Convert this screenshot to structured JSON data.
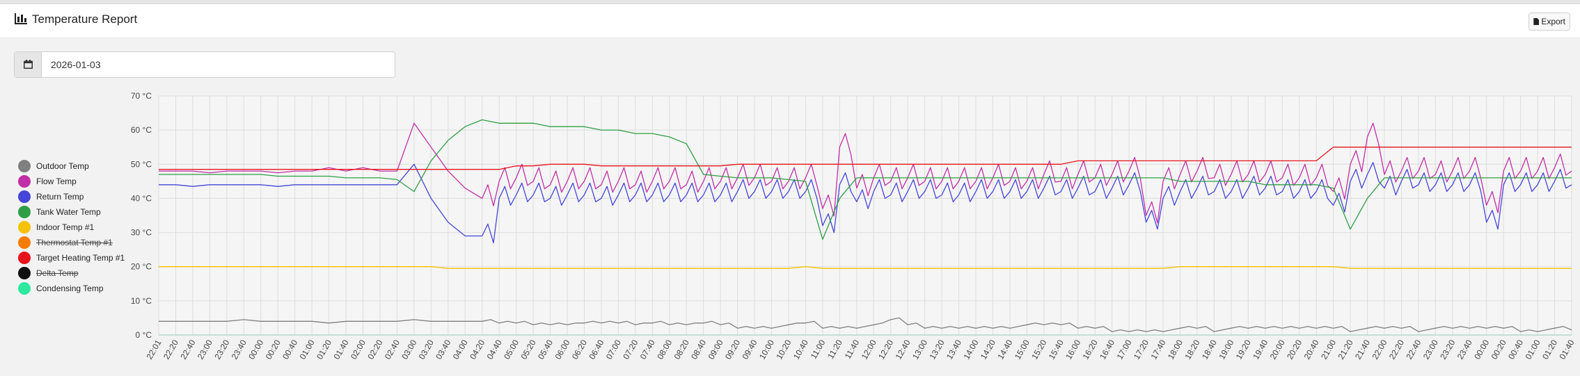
{
  "header": {
    "title": "Temperature Report",
    "export_label": "Export",
    "title_icon": "bar-chart-icon",
    "export_icon": "file-icon"
  },
  "date_picker": {
    "value": "2026-01-03",
    "icon": "calendar-icon"
  },
  "legend": [
    {
      "label": "Outdoor Temp",
      "color": "#7f7f7f",
      "hidden": false
    },
    {
      "label": "Flow Temp",
      "color": "#c02fa6",
      "hidden": false
    },
    {
      "label": "Return Temp",
      "color": "#4545d8",
      "hidden": false
    },
    {
      "label": "Tank Water Temp",
      "color": "#2e9e44",
      "hidden": false
    },
    {
      "label": "Indoor Temp #1",
      "color": "#f7c200",
      "hidden": false
    },
    {
      "label": "Thermostat Temp #1",
      "color": "#f57c00",
      "hidden": true
    },
    {
      "label": "Target Heating Temp #1",
      "color": "#e8141b",
      "hidden": false
    },
    {
      "label": "Delta Temp",
      "color": "#111111",
      "hidden": true
    },
    {
      "label": "Condensing Temp",
      "color": "#2ee8a0",
      "hidden": false
    }
  ],
  "chart_data": {
    "type": "line",
    "yunit": "°C",
    "ylim": [
      0,
      70
    ],
    "yticks": [
      0,
      10,
      20,
      30,
      40,
      50,
      60,
      70
    ],
    "ytick_labels": [
      "0 °C",
      "10 °C",
      "20 °C",
      "30 °C",
      "40 °C",
      "50 °C",
      "60 °C",
      "70 °C"
    ],
    "grid": true,
    "legend_position": "left",
    "x": [
      "22:01",
      "22:20",
      "22:40",
      "23:00",
      "23:20",
      "23:40",
      "00:00",
      "00:20",
      "00:40",
      "01:00",
      "01:20",
      "01:40",
      "02:00",
      "02:20",
      "02:40",
      "03:00",
      "03:20",
      "03:40",
      "04:00",
      "04:20",
      "04:40",
      "05:00",
      "05:20",
      "05:40",
      "06:00",
      "06:20",
      "06:40",
      "07:00",
      "07:20",
      "07:40",
      "08:00",
      "08:20",
      "08:40",
      "09:00",
      "09:20",
      "09:40",
      "10:00",
      "10:20",
      "10:40",
      "11:00",
      "11:20",
      "11:40",
      "12:00",
      "12:20",
      "12:40",
      "13:00",
      "13:20",
      "13:40",
      "14:00",
      "14:20",
      "14:40",
      "15:00",
      "15:20",
      "15:40",
      "16:00",
      "16:20",
      "16:40",
      "17:00",
      "17:20",
      "17:40",
      "18:00",
      "18:20",
      "18:40",
      "19:00",
      "19:20",
      "19:40",
      "20:00",
      "20:20",
      "20:40",
      "21:00",
      "21:20",
      "21:40",
      "22:00",
      "22:20",
      "22:40",
      "23:00",
      "23:20",
      "23:40",
      "00:00",
      "00:20",
      "00:40",
      "01:00",
      "01:20",
      "01:40"
    ],
    "series": [
      {
        "name": "Outdoor Temp",
        "values": [
          4,
          4,
          4,
          4,
          4,
          4.5,
          4,
          4,
          4,
          4,
          3.5,
          4,
          4,
          4,
          4,
          4.5,
          4,
          4,
          4,
          4,
          3.5,
          3.5,
          3,
          3,
          3,
          3.5,
          3.5,
          3.5,
          3,
          3.5,
          3,
          3,
          3.5,
          3,
          2,
          2,
          2,
          3,
          3.5,
          2,
          2,
          2,
          3,
          4.5,
          3,
          2,
          2,
          2,
          2,
          2,
          2,
          3,
          3,
          3,
          2,
          2,
          1,
          1,
          1,
          1,
          2,
          2,
          1,
          2,
          2,
          2,
          2,
          2,
          2,
          2,
          1,
          2,
          2,
          2,
          1,
          2,
          2,
          2,
          2,
          2,
          1,
          1,
          2,
          1.5
        ]
      },
      {
        "name": "Flow Temp",
        "values": [
          48,
          48,
          48,
          47.5,
          48,
          48,
          48,
          47.5,
          48,
          48,
          49,
          48,
          49,
          48,
          48,
          62,
          55,
          48,
          43,
          40,
          45,
          46,
          45,
          44,
          45,
          45,
          44,
          45,
          44,
          45,
          45,
          44,
          45,
          45,
          46,
          46,
          45,
          45,
          46,
          37,
          55,
          43,
          46,
          45,
          46,
          45,
          45,
          45,
          45,
          46,
          45,
          45,
          47,
          45,
          47,
          46,
          47,
          48,
          35,
          45,
          47,
          48,
          46,
          47,
          47,
          47,
          46,
          46,
          46,
          42,
          50,
          58,
          47,
          48,
          48,
          47,
          48,
          48,
          38,
          48,
          48,
          48,
          49,
          48
        ]
      },
      {
        "name": "Return Temp",
        "values": [
          44,
          44,
          43.5,
          44,
          44,
          44,
          44,
          43.5,
          44,
          44,
          44,
          44,
          44,
          44,
          44,
          50,
          40,
          33,
          29,
          29,
          40,
          41,
          41,
          40,
          41,
          41,
          40,
          41,
          41,
          41,
          41,
          41,
          41,
          41,
          42,
          42,
          42,
          42,
          42,
          32,
          44,
          39,
          42,
          41,
          42,
          42,
          41,
          41,
          42,
          42,
          42,
          42,
          43,
          42,
          43,
          42,
          43,
          44,
          33,
          40,
          42,
          43,
          42,
          42,
          43,
          43,
          42,
          42,
          42,
          38,
          45,
          47,
          43,
          45,
          44,
          44,
          44,
          44,
          33,
          44,
          44,
          44,
          45,
          44
        ]
      },
      {
        "name": "Tank Water Temp",
        "values": [
          47,
          47,
          47,
          47,
          47,
          47,
          47,
          46.5,
          46.5,
          46.5,
          46.5,
          46,
          46,
          46,
          45.5,
          42,
          51,
          57,
          61,
          63,
          62,
          62,
          62,
          61,
          61,
          61,
          60,
          60,
          59,
          59,
          58,
          56,
          47,
          46.5,
          46,
          46,
          46,
          45.5,
          45,
          28,
          40,
          46,
          46,
          46,
          46,
          46,
          46,
          46,
          46,
          46,
          46,
          46,
          46,
          46,
          46,
          46,
          46,
          46,
          46,
          46,
          45,
          45,
          45,
          45,
          45,
          44,
          44,
          44,
          44,
          43,
          31,
          40,
          46,
          46,
          46,
          46,
          46,
          46,
          46,
          46,
          46,
          46,
          46,
          46
        ]
      },
      {
        "name": "Indoor Temp #1",
        "values": [
          20,
          20,
          20,
          20,
          20,
          20,
          20,
          20,
          20,
          20,
          20,
          20,
          20,
          20,
          20,
          20,
          20,
          19.5,
          19.5,
          19.5,
          19.5,
          19.5,
          19.5,
          19.5,
          19.5,
          19.5,
          19.5,
          19.5,
          19.5,
          19.5,
          19.5,
          19.5,
          19.5,
          19.5,
          19.5,
          19.5,
          19.5,
          19.5,
          20,
          19.5,
          19.5,
          19.5,
          19.5,
          19.5,
          19.5,
          19.5,
          19.5,
          19.5,
          19.5,
          19.5,
          19.5,
          19.5,
          19.5,
          19.5,
          19.5,
          19.5,
          19.5,
          19.5,
          19.5,
          19.5,
          20,
          20,
          20,
          20,
          20,
          20,
          20,
          20,
          20,
          20,
          19.5,
          19.5,
          19.5,
          19.5,
          19.5,
          19.5,
          19.5,
          19.5,
          19.5,
          19.5,
          19.5,
          19.5,
          19.5,
          19.5
        ]
      },
      {
        "name": "Target Heating Temp #1",
        "values": [
          48.5,
          48.5,
          48.5,
          48.5,
          48.5,
          48.5,
          48.5,
          48.5,
          48.5,
          48.5,
          48.5,
          48.5,
          48.5,
          48.5,
          48.5,
          48.5,
          48.5,
          48.5,
          48.5,
          48.5,
          48.5,
          49.5,
          49.5,
          50,
          50,
          50,
          49.5,
          49.5,
          49.5,
          49.5,
          49.5,
          49.5,
          49.5,
          49.5,
          50,
          50,
          50,
          50,
          50,
          50,
          50,
          50,
          50,
          50,
          50,
          50,
          50,
          50,
          50,
          50,
          50,
          50,
          50,
          50,
          51,
          51,
          51,
          51,
          51,
          51,
          51,
          51,
          51,
          51,
          51,
          51,
          51,
          51,
          51,
          55,
          55,
          55,
          55,
          55,
          55,
          55,
          55,
          55,
          55,
          55,
          55,
          55,
          55,
          55
        ]
      },
      {
        "name": "Condensing Temp",
        "values": [
          0,
          0,
          0,
          0,
          0,
          0,
          0,
          0,
          0,
          0,
          0,
          0,
          0,
          0,
          0,
          0,
          0,
          0,
          0,
          0,
          0,
          0,
          0,
          0,
          0,
          0,
          0,
          0,
          0,
          0,
          0,
          0,
          0,
          0,
          0,
          0,
          0,
          0,
          0,
          0,
          0,
          0,
          0,
          0,
          0,
          0,
          0,
          0,
          0,
          0,
          0,
          0,
          0,
          0,
          0,
          0,
          0,
          0,
          0,
          0,
          0,
          0,
          0,
          0,
          0,
          0,
          0,
          0,
          0,
          0,
          0,
          0,
          0,
          0,
          0,
          0,
          0,
          0,
          0,
          0,
          0,
          0,
          0,
          0
        ]
      }
    ]
  }
}
